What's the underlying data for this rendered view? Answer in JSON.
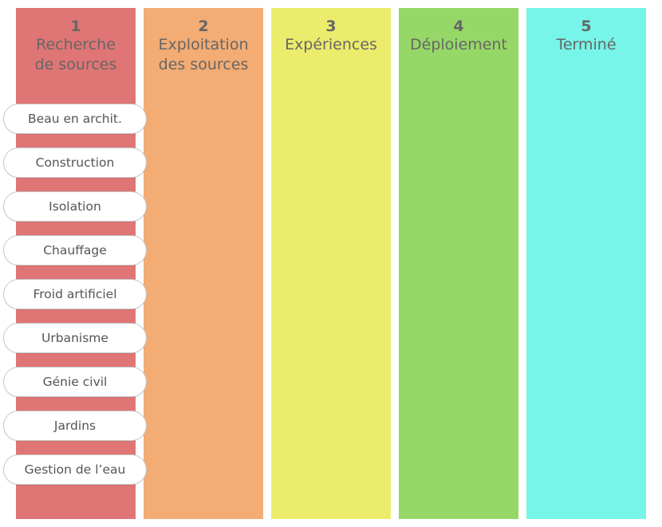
{
  "board": {
    "columns": [
      {
        "number": "1",
        "title": "Recherche\nde sources",
        "color": "#E07575"
      },
      {
        "number": "2",
        "title": "Exploitation\ndes sources",
        "color": "#F3AC74"
      },
      {
        "number": "3",
        "title": "Expériences",
        "color": "#ECEC6C"
      },
      {
        "number": "4",
        "title": "Déploiement",
        "color": "#96D867"
      },
      {
        "number": "5",
        "title": "Terminé",
        "color": "#76F5E8"
      }
    ],
    "cards": [
      "Beau en archit.",
      "Construction",
      "Isolation",
      "Chauffage",
      "Froid artificiel",
      "Urbanisme",
      "Génie civil",
      "Jardins",
      "Gestion de l’eau"
    ]
  }
}
